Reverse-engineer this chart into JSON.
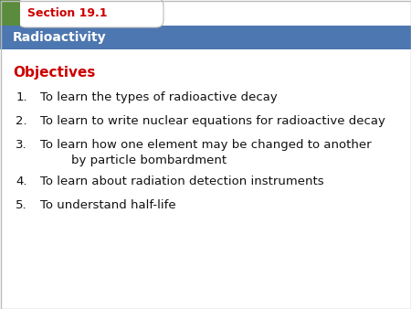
{
  "section_label": "Section 19.1",
  "section_text_color": "#cc0000",
  "banner_bg": "#4d77b0",
  "banner_text": "Radioactivity",
  "banner_text_color": "#ffffff",
  "objectives_label": "Objectives",
  "objectives_color": "#cc0000",
  "green_color": "#5b8c3e",
  "items": [
    "To learn the types of radioactive decay",
    "To learn to write nuclear equations for radioactive decay",
    "To learn how one element may be changed to another\n        by particle bombardment",
    "To learn about radiation detection instruments",
    "To understand half-life"
  ],
  "item_text_color": "#111111",
  "bg_color": "#ffffff",
  "border_color": "#bbbbbb",
  "fig_width": 4.5,
  "fig_height": 3.38,
  "dpi": 100
}
